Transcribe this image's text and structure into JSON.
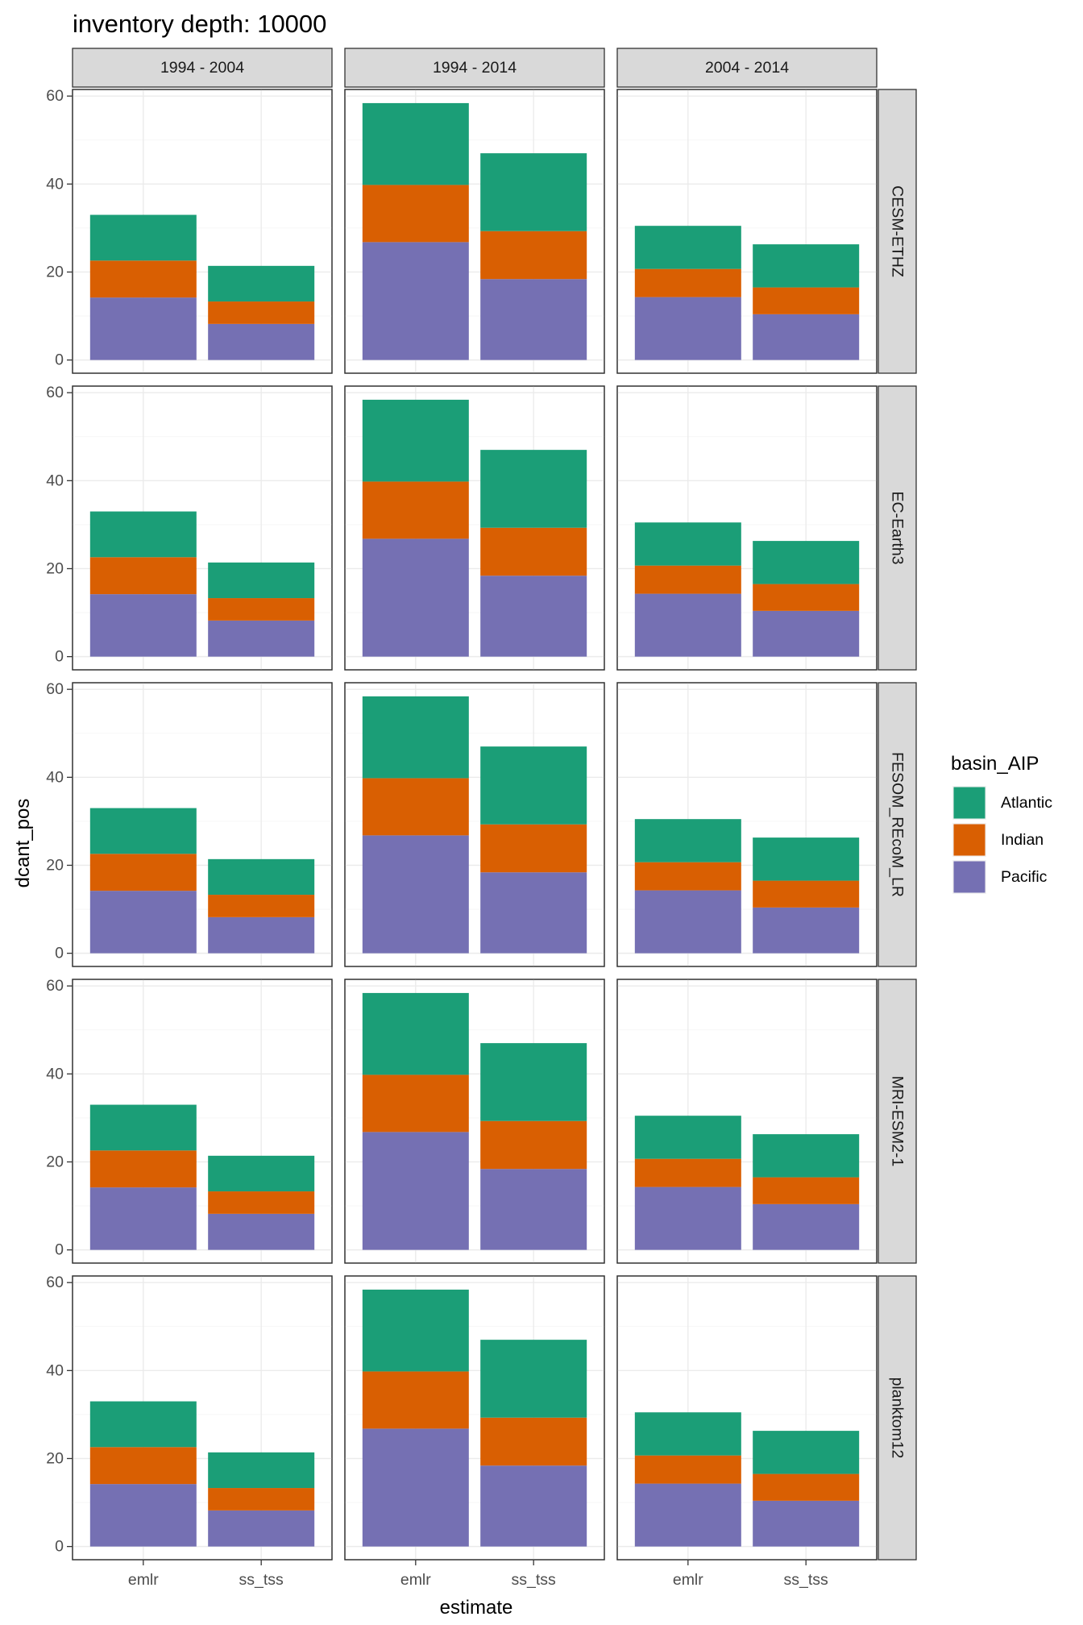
{
  "chart_data": {
    "type": "bar",
    "stacked": true,
    "title": "inventory depth: 10000",
    "xlabel": "estimate",
    "ylabel": "dcant_pos",
    "ylim": [
      0,
      60
    ],
    "yticks": [
      0,
      20,
      40,
      60
    ],
    "categories": [
      "emlr",
      "ss_tss"
    ],
    "facet_columns": [
      "1994 - 2004",
      "1994 - 2014",
      "2004 - 2014"
    ],
    "facet_rows": [
      "CESM-ETHZ",
      "EC-Earth3",
      "FESOM_REcoM_LR",
      "MRI-ESM2-1",
      "planktom12"
    ],
    "legend": {
      "title": "basin_AIP",
      "placement": "right",
      "entries": [
        {
          "name": "Atlantic",
          "color": "#1b9e77"
        },
        {
          "name": "Indian",
          "color": "#d95f02"
        },
        {
          "name": "Pacific",
          "color": "#7570b3"
        }
      ]
    },
    "stack_order": [
      "Pacific",
      "Indian",
      "Atlantic"
    ],
    "grid": true,
    "values_by_period": {
      "1994 - 2004": {
        "emlr": {
          "Pacific": 14.2,
          "Indian": 8.4,
          "Atlantic": 10.4
        },
        "ss_tss": {
          "Pacific": 8.2,
          "Indian": 5.1,
          "Atlantic": 8.1
        }
      },
      "1994 - 2014": {
        "emlr": {
          "Pacific": 26.8,
          "Indian": 13.0,
          "Atlantic": 18.6
        },
        "ss_tss": {
          "Pacific": 18.4,
          "Indian": 10.9,
          "Atlantic": 17.7
        }
      },
      "2004 - 2014": {
        "emlr": {
          "Pacific": 14.3,
          "Indian": 6.4,
          "Atlantic": 9.8
        },
        "ss_tss": {
          "Pacific": 10.4,
          "Indian": 6.1,
          "Atlantic": 9.8
        }
      }
    }
  }
}
